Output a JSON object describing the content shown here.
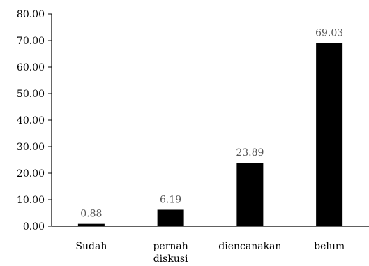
{
  "chart_data": {
    "type": "bar",
    "categories": [
      [
        "Sudah"
      ],
      [
        "pernah",
        "diskusi"
      ],
      [
        "diencanakan"
      ],
      [
        "belum"
      ]
    ],
    "values": [
      0.88,
      6.19,
      23.89,
      69.03
    ],
    "value_labels": [
      "0.88",
      "6.19",
      "23.89",
      "69.03"
    ],
    "y_ticks": [
      "0.00",
      "10.00",
      "20.00",
      "30.00",
      "40.00",
      "50.00",
      "60.00",
      "70.00",
      "80.00"
    ],
    "ylim": [
      0,
      80
    ],
    "grid": false,
    "legend": "none",
    "bar_color": "#000000",
    "axis_color": "#000000",
    "data_label_color": "#555555"
  }
}
